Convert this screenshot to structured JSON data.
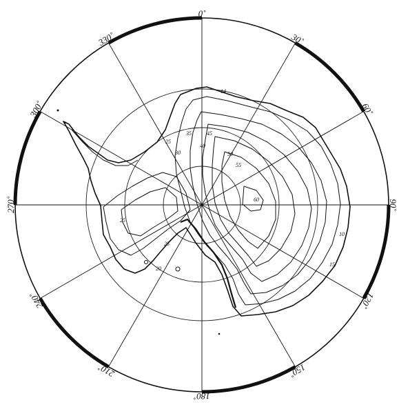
{
  "map": {
    "projection": "south polar stereographic",
    "graticule": {
      "meridian_step_deg": 30,
      "latitude_circles_count": 3
    },
    "longitude_labels": [
      {
        "lon": 0,
        "text": "0˚"
      },
      {
        "lon": 30,
        "text": "30˚"
      },
      {
        "lon": 60,
        "text": "60˚"
      },
      {
        "lon": 90,
        "text": "90˚"
      },
      {
        "lon": 120,
        "text": "120˚"
      },
      {
        "lon": 150,
        "text": "150˚"
      },
      {
        "lon": 180,
        "text": "180˚"
      },
      {
        "lon": 210,
        "text": "210˚"
      },
      {
        "lon": 240,
        "text": "240˚"
      },
      {
        "lon": 270,
        "text": "270˚"
      },
      {
        "lon": 300,
        "text": "300˚"
      },
      {
        "lon": 330,
        "text": "330˚"
      }
    ],
    "contour_labels": [
      "14",
      "25",
      "30",
      "35",
      "40",
      "45",
      "50",
      "55",
      "60",
      "10",
      "15",
      "25",
      "25",
      "20"
    ],
    "colors": {
      "ink": "#111111",
      "paper": "#ffffff"
    }
  }
}
